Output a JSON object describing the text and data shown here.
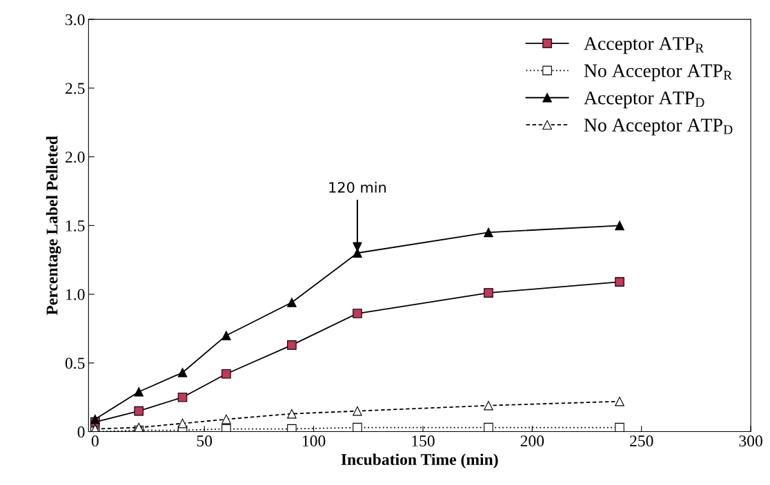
{
  "chart_data": {
    "type": "line",
    "xlabel": "Incubation Time (min)",
    "ylabel": "Percentage Label Pelleted",
    "x": [
      0,
      20,
      40,
      60,
      90,
      120,
      180,
      240
    ],
    "series": [
      {
        "name": "Acceptor ATP$_{R}$",
        "color": "#c0395a",
        "marker": "square",
        "line_style": "solid",
        "values": [
          0.07,
          0.15,
          0.25,
          0.42,
          0.63,
          0.86,
          1.01,
          1.09
        ]
      },
      {
        "name": "No Acceptor ATP$_{R}$",
        "color": "#ffffff",
        "marker": "square",
        "line_style": "dotted",
        "values": [
          0.0,
          0.01,
          0.01,
          0.02,
          0.02,
          0.03,
          0.03,
          0.03
        ]
      },
      {
        "name": "Acceptor ATP$_{D}$",
        "color": "#000000",
        "marker": "triangle",
        "line_style": "solid",
        "values": [
          0.09,
          0.29,
          0.43,
          0.7,
          0.94,
          1.3,
          1.45,
          1.5
        ]
      },
      {
        "name": "No Acceptor ATP$_{D}$",
        "color": "#ffffff",
        "marker": "triangle",
        "line_style": "dashed",
        "values": [
          0.02,
          0.03,
          0.06,
          0.09,
          0.13,
          0.15,
          0.19,
          0.22
        ]
      }
    ],
    "xlim": [
      -3,
      300
    ],
    "xticks": [
      0,
      50,
      100,
      150,
      200,
      250,
      300
    ],
    "ylim": [
      0,
      3.0
    ],
    "yticks": [
      0,
      {
        "value": 0.5,
        "label": "0.5"
      },
      {
        "value": 1.0,
        "label": "1.0"
      },
      {
        "value": 1.5,
        "label": "1.5"
      },
      {
        "value": 2.0,
        "label": "2.0"
      },
      {
        "value": 2.5,
        "label": "2.5"
      },
      {
        "value": 3.0,
        "label": "3.0"
      }
    ],
    "annotations": [
      {
        "text": "120 min",
        "x": 120,
        "y": 1.3
      }
    ],
    "grid": false,
    "legend": "top right"
  }
}
